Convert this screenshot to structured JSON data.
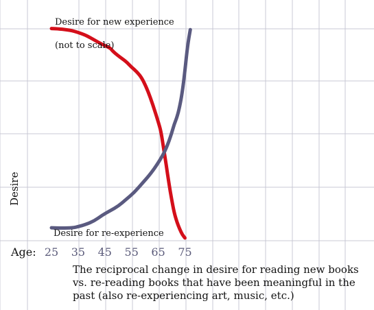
{
  "chart_data": {
    "type": "line",
    "xlabel": "Age:",
    "ylabel": "Desire",
    "xlim": [
      25,
      77
    ],
    "ylim": [
      0,
      10
    ],
    "x_ticks": [
      "25",
      "35",
      "45",
      "55",
      "65",
      "75"
    ],
    "grid": true,
    "note": "(not to scale)",
    "caption": "The reciprocal change in desire for reading new books vs. re-reading books that have been meaningful in the past (also re-experiencing art, music, etc.)",
    "series": [
      {
        "name": "Desire for new experience",
        "color": "#d40f1a",
        "x": [
          25,
          28,
          32,
          35,
          38,
          41,
          44,
          47,
          48,
          50,
          53,
          55,
          57,
          59,
          61,
          63,
          65,
          66,
          67,
          68,
          69,
          70,
          71,
          72,
          73,
          74,
          75
        ],
        "y": [
          9.35,
          9.33,
          9.28,
          9.18,
          9.05,
          8.85,
          8.65,
          8.5,
          8.35,
          8.15,
          7.9,
          7.65,
          7.45,
          7.15,
          6.65,
          6.0,
          5.25,
          4.85,
          4.1,
          3.35,
          2.55,
          1.85,
          1.25,
          0.85,
          0.55,
          0.3,
          0.15
        ]
      },
      {
        "name": "Desire for re-experience",
        "color": "#5a5a80",
        "x": [
          25,
          29,
          33,
          35,
          38,
          41,
          44,
          47,
          50,
          53,
          56,
          59,
          62,
          65,
          67,
          68,
          69,
          70,
          71,
          72,
          73,
          74,
          75,
          76,
          77
        ],
        "y": [
          0.6,
          0.58,
          0.6,
          0.65,
          0.75,
          0.9,
          1.15,
          1.35,
          1.55,
          1.85,
          2.15,
          2.55,
          2.95,
          3.45,
          3.85,
          4.1,
          4.4,
          4.75,
          5.15,
          5.45,
          5.9,
          6.55,
          7.5,
          8.6,
          9.3
        ]
      }
    ]
  }
}
